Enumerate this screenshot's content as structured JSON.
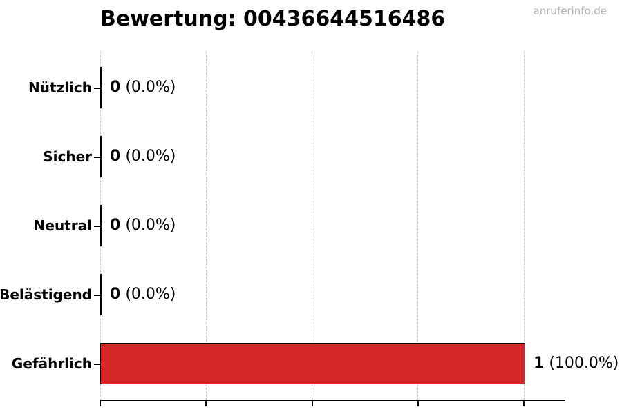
{
  "header": {
    "watermark": "anruferinfo.de"
  },
  "chart_data": {
    "type": "bar",
    "orientation": "horizontal",
    "title": "Bewertung: 00436644516486",
    "categories": [
      "Nützlich",
      "Sicher",
      "Neutral",
      "Belästigend",
      "Gefährlich"
    ],
    "values": [
      0,
      0,
      0,
      0,
      1
    ],
    "annotations": [
      {
        "count": "0",
        "percent": "(0.0%)"
      },
      {
        "count": "0",
        "percent": "(0.0%)"
      },
      {
        "count": "0",
        "percent": "(0.0%)"
      },
      {
        "count": "0",
        "percent": "(0.0%)"
      },
      {
        "count": "1",
        "percent": "(100.0%)"
      }
    ],
    "xlim": [
      0,
      1.1
    ],
    "xticks": [
      0,
      0.25,
      0.5,
      0.75,
      1.0
    ],
    "grid": "vertical-dashed",
    "legend": "none",
    "xlabel": "",
    "ylabel": "",
    "colors": {
      "bar_fill": "#d62728",
      "bar_edge": "#000000",
      "gridline": "#c8c8c8",
      "axis": "#000000",
      "title": "#000000",
      "watermark": "#b3b3b3"
    }
  }
}
